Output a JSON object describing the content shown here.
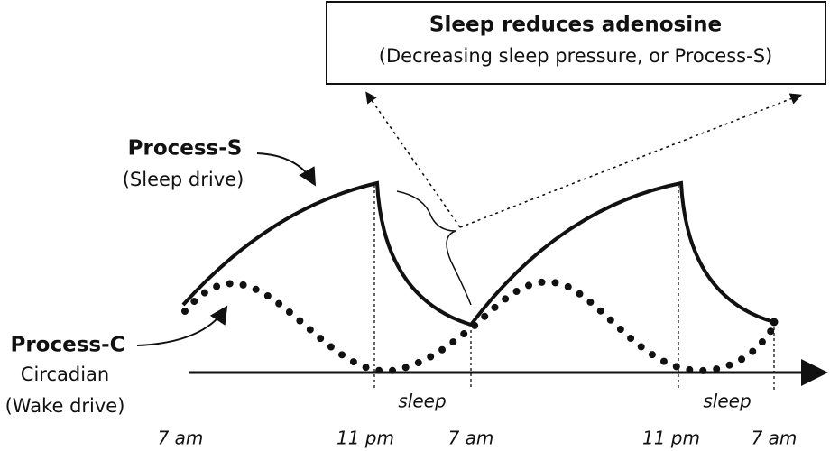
{
  "box": {
    "title": "Sleep reduces adenosine",
    "subtitle": "(Decreasing sleep pressure, or Process-S)"
  },
  "process_s": {
    "name": "Process-S",
    "description": "(Sleep drive)"
  },
  "process_c": {
    "name": "Process-C",
    "description": "Circadian",
    "drive": "(Wake drive)"
  },
  "sleep_labels": [
    "sleep",
    "sleep"
  ],
  "time_labels": [
    "7 am",
    "11 pm",
    "7 am",
    "11 pm",
    "7 am"
  ]
}
